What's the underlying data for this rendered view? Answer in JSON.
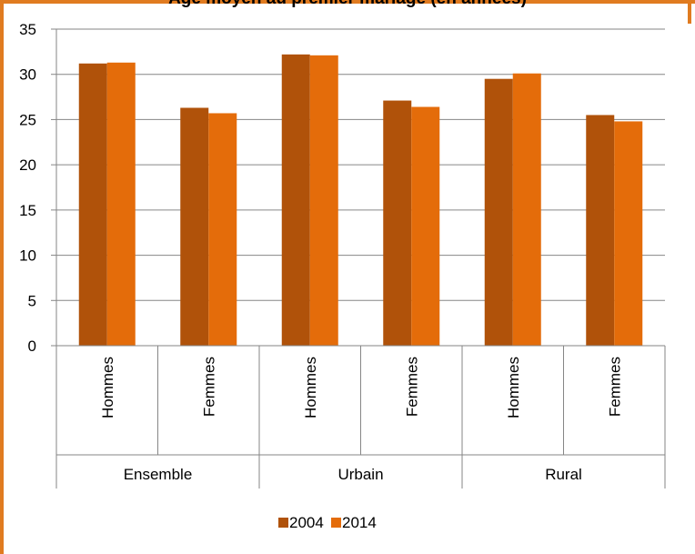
{
  "chart_data": {
    "type": "bar",
    "title": "Âge moyen au premier mariage (en années)",
    "groups": [
      "Ensemble",
      "Urbain",
      "Rural"
    ],
    "categories": [
      "Hommes",
      "Femmes",
      "Hommes",
      "Femmes",
      "Hommes",
      "Femmes"
    ],
    "series": [
      {
        "name": "2004",
        "color": "#b0520a",
        "values": [
          31.2,
          26.3,
          32.2,
          27.1,
          29.5,
          25.5
        ]
      },
      {
        "name": "2014",
        "color": "#e46c0a",
        "values": [
          31.3,
          25.7,
          32.1,
          26.4,
          30.1,
          24.8
        ]
      }
    ],
    "ylim": [
      0,
      35
    ],
    "yticks": [
      "0",
      "5",
      "10",
      "15",
      "20",
      "25",
      "30",
      "35"
    ],
    "grid": true,
    "legend": "bottom"
  }
}
